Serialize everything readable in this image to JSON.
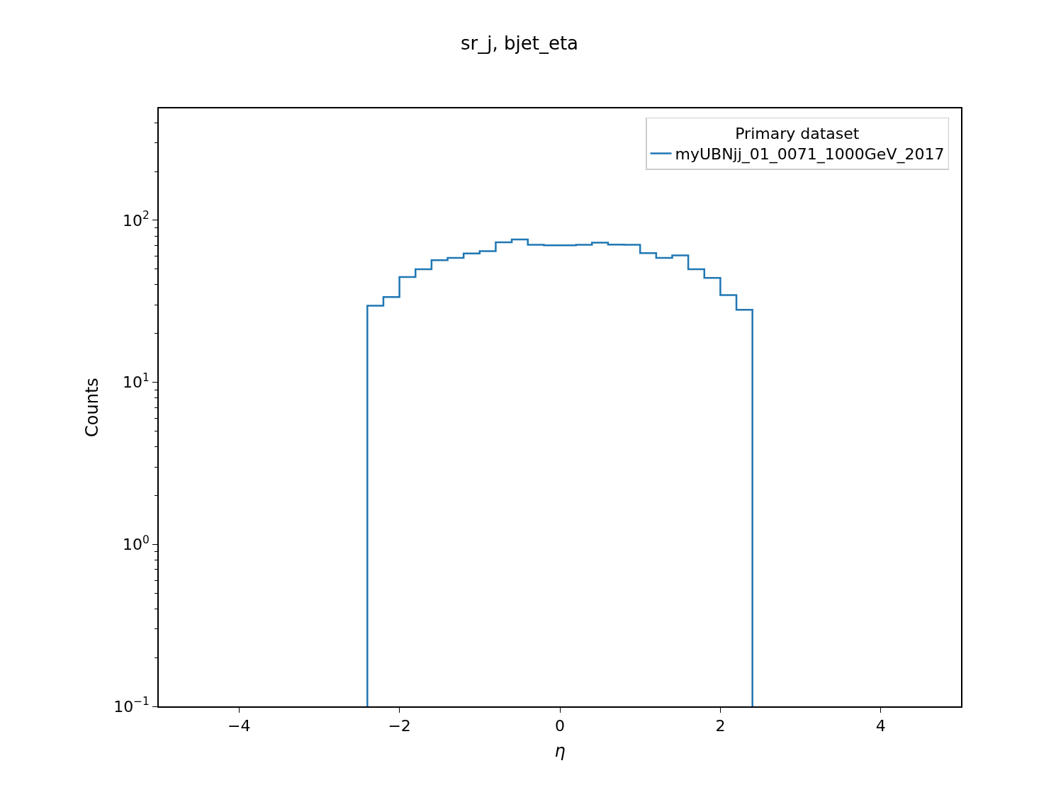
{
  "chart_data": {
    "type": "histogram",
    "title": "sr_j, bjet_eta",
    "xlabel": "η",
    "ylabel": "Counts",
    "legend_title": "Primary dataset",
    "bins": [
      -2.4,
      -2.2,
      -2.0,
      -1.8,
      -1.6,
      -1.4,
      -1.2,
      -1.0,
      -0.8,
      -0.6,
      -0.4,
      -0.2,
      0.0,
      0.2,
      0.4,
      0.6,
      0.8,
      1.0,
      1.2,
      1.4,
      1.6,
      1.8,
      2.0,
      2.2,
      2.4
    ],
    "series": [
      {
        "name": "myUBNjj_01_0071_1000GeV_2017",
        "color": "#1f77b4",
        "values": [
          29.7,
          33.6,
          44.6,
          49.9,
          56.7,
          58.6,
          62.3,
          64.4,
          73,
          76,
          70.5,
          70,
          70,
          70.5,
          72.7,
          70.8,
          70.5,
          62.7,
          58.6,
          60.6,
          49.8,
          44.1,
          34.5,
          28
        ]
      }
    ],
    "log": "y",
    "xlim": [
      -5,
      5
    ],
    "ylim": [
      0.1,
      490
    ],
    "xticks": [
      {
        "value": -4,
        "label": "−4"
      },
      {
        "value": -2,
        "label": "−2"
      },
      0,
      2,
      4
    ],
    "yticks": [
      {
        "value": 0.1,
        "label": "10$^{−1}$"
      },
      {
        "value": 1,
        "label": "10$^{0}$"
      },
      {
        "value": 10,
        "label": "10$^{1}$"
      },
      {
        "value": 100,
        "label": "10$^{2}$"
      }
    ],
    "legend": "top right"
  }
}
